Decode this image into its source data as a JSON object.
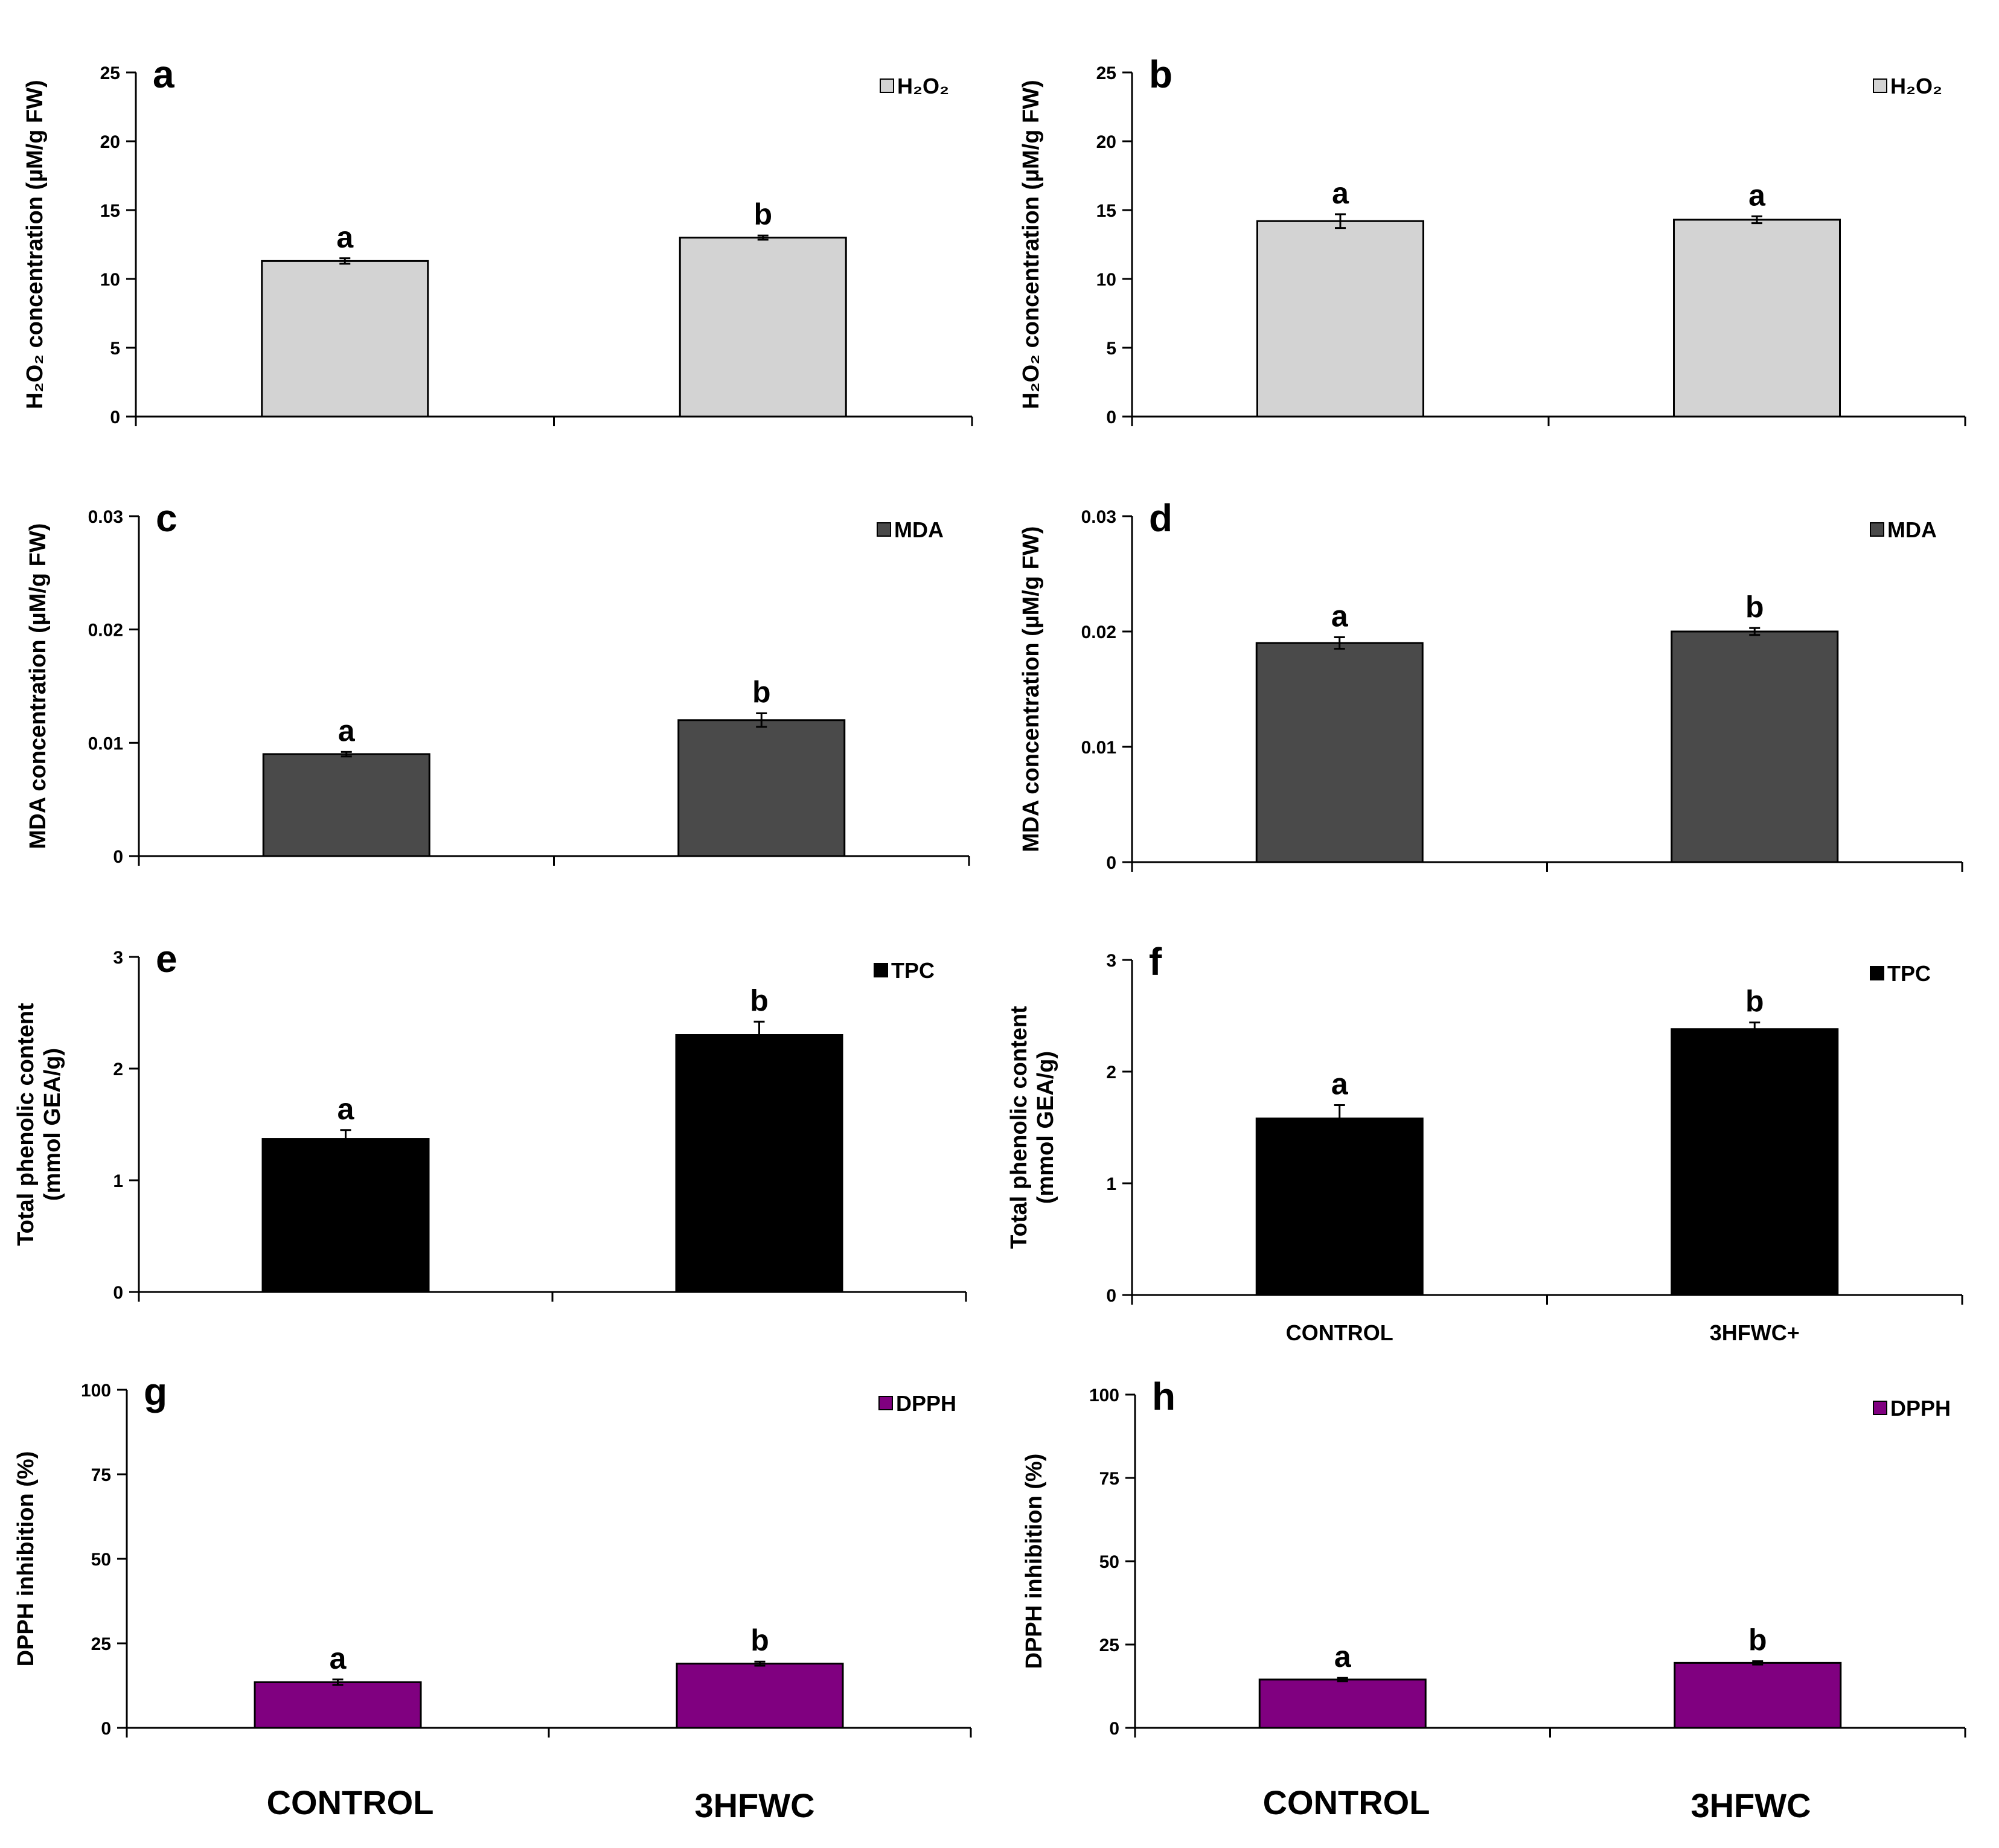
{
  "chart_data": [
    {
      "id": "a",
      "type": "bar",
      "panel_label": "a",
      "ylabel": "H₂O₂ concentration (µM/g FW)",
      "ylim": [
        0,
        25
      ],
      "yticks": [
        "0",
        "5",
        "10",
        "15",
        "20",
        "25"
      ],
      "categories": [
        "CONTROL",
        "3HFWC"
      ],
      "show_categories": false,
      "series": [
        {
          "name": "H₂O₂",
          "values": [
            11.3,
            13.0
          ],
          "errors": [
            0.2,
            0.15
          ]
        }
      ],
      "significance": [
        "a",
        "b"
      ],
      "legend_position": "top-right",
      "color": "#d3d3d3"
    },
    {
      "id": "b",
      "type": "bar",
      "panel_label": "b",
      "ylabel": "H₂O₂ concentration (µM/g FW)",
      "ylim": [
        0,
        25
      ],
      "yticks": [
        "0",
        "5",
        "10",
        "15",
        "20",
        "25"
      ],
      "categories": [
        "CONTROL",
        "3HFWC"
      ],
      "show_categories": false,
      "series": [
        {
          "name": "H₂O₂",
          "values": [
            14.2,
            14.3
          ],
          "errors": [
            0.5,
            0.25
          ]
        }
      ],
      "significance": [
        "a",
        "a"
      ],
      "legend_position": "top-right",
      "color": "#d3d3d3"
    },
    {
      "id": "c",
      "type": "bar",
      "panel_label": "c",
      "ylabel": "MDA concentration (µM/g FW)",
      "ylim": [
        0,
        0.03
      ],
      "yticks": [
        "0",
        "0.01",
        "0.02",
        "0.03"
      ],
      "categories": [
        "CONTROL",
        "3HFWC"
      ],
      "show_categories": false,
      "series": [
        {
          "name": "MDA",
          "values": [
            0.009,
            0.012
          ],
          "errors": [
            0.0002,
            0.0006
          ]
        }
      ],
      "significance": [
        "a",
        "b"
      ],
      "legend_position": "top-right",
      "color": "#4a4a4a"
    },
    {
      "id": "d",
      "type": "bar",
      "panel_label": "d",
      "ylabel": "MDA concentration (µM/g FW)",
      "ylim": [
        0,
        0.03
      ],
      "yticks": [
        "0",
        "0.01",
        "0.02",
        "0.03"
      ],
      "categories": [
        "CONTROL",
        "3HFWC"
      ],
      "show_categories": false,
      "series": [
        {
          "name": "MDA",
          "values": [
            0.019,
            0.02
          ],
          "errors": [
            0.0005,
            0.0003
          ]
        }
      ],
      "significance": [
        "a",
        "b"
      ],
      "legend_position": "top-right",
      "color": "#4a4a4a"
    },
    {
      "id": "e",
      "type": "bar",
      "panel_label": "e",
      "ylabel": "Total phenolic content",
      "ylabel2": "(mmol GEA/g)",
      "ylim": [
        0,
        3
      ],
      "yticks": [
        "0",
        "1",
        "2",
        "3"
      ],
      "categories": [
        "CONTROL",
        "3HFWC"
      ],
      "show_categories": false,
      "series": [
        {
          "name": "TPC",
          "values": [
            1.37,
            2.3
          ],
          "errors": [
            0.08,
            0.12
          ]
        }
      ],
      "significance": [
        "a",
        "b"
      ],
      "legend_position": "top-right",
      "color": "#000000"
    },
    {
      "id": "f",
      "type": "bar",
      "panel_label": "f",
      "ylabel": "Total phenolic content",
      "ylabel2": "(mmol GEA/g)",
      "ylim": [
        0,
        3
      ],
      "yticks": [
        "0",
        "1",
        "2",
        "3"
      ],
      "categories": [
        "CONTROL",
        "3HFWC+"
      ],
      "show_categories": true,
      "series": [
        {
          "name": "TPC",
          "values": [
            1.58,
            2.38
          ],
          "errors": [
            0.12,
            0.06
          ]
        }
      ],
      "significance": [
        "a",
        "b"
      ],
      "legend_position": "top-right",
      "color": "#000000"
    },
    {
      "id": "g",
      "type": "bar",
      "panel_label": "g",
      "ylabel": "DPPH inhibition (%)",
      "ylim": [
        0,
        100
      ],
      "yticks": [
        "0",
        "25",
        "50",
        "75",
        "100"
      ],
      "categories": [
        "CONTROL",
        "3HFWC"
      ],
      "show_categories": false,
      "series": [
        {
          "name": "DPPH",
          "values": [
            13.5,
            19.0
          ],
          "errors": [
            0.8,
            0.6
          ]
        }
      ],
      "significance": [
        "a",
        "b"
      ],
      "legend_position": "top-right",
      "color": "#800080"
    },
    {
      "id": "h",
      "type": "bar",
      "panel_label": "h",
      "ylabel": "DPPH inhibition (%)",
      "ylim": [
        0,
        100
      ],
      "yticks": [
        "0",
        "25",
        "50",
        "75",
        "100"
      ],
      "categories": [
        "CONTROL",
        "3HFWC"
      ],
      "show_categories": false,
      "series": [
        {
          "name": "DPPH",
          "values": [
            14.5,
            19.5
          ],
          "errors": [
            0.5,
            0.5
          ]
        }
      ],
      "significance": [
        "a",
        "b"
      ],
      "legend_position": "top-right",
      "color": "#800080"
    }
  ],
  "bottom_labels": {
    "left": [
      "CONTROL",
      "3HFWC"
    ],
    "right": [
      "CONTROL",
      "3HFWC"
    ]
  }
}
